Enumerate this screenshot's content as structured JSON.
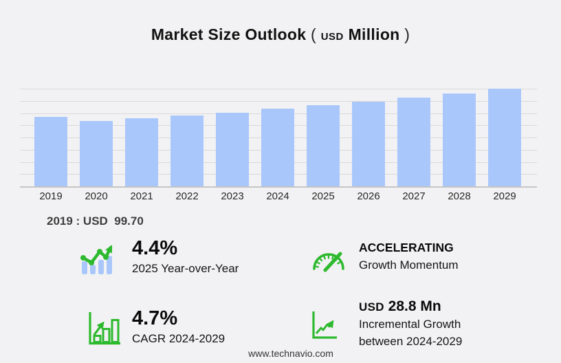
{
  "title": {
    "main": "Market Size Outlook",
    "paren_open": "(",
    "currency": "USD",
    "unit": "Million",
    "paren_close": ")"
  },
  "chart_data": {
    "type": "bar",
    "title": "Market Size Outlook (USD Million)",
    "categories": [
      "2019",
      "2020",
      "2021",
      "2022",
      "2023",
      "2024",
      "2025",
      "2026",
      "2027",
      "2028",
      "2029"
    ],
    "values": [
      99.7,
      93.8,
      98.3,
      102.0,
      106.2,
      111.5,
      116.4,
      121.6,
      127.3,
      133.5,
      140.3
    ],
    "xlabel": "",
    "ylabel": "",
    "ylim": [
      0,
      140.3
    ],
    "gridline_count": 8,
    "grid": true,
    "legend": false,
    "bar_color": "#a9c7fb",
    "annotation": "2019 : USD  99.70"
  },
  "stats": [
    {
      "icon": "bar-chart-trend-up-icon",
      "value": "4.4%",
      "label": "2025 Year-over-Year"
    },
    {
      "icon": "speedometer-icon",
      "value": "ACCELERATING",
      "label": "Growth Momentum"
    },
    {
      "icon": "framed-growth-chart-icon",
      "value": "4.7%",
      "label": "CAGR 2024-2029"
    },
    {
      "icon": "line-graph-arrow-icon",
      "value_prefix": "USD",
      "value": "28.8 Mn",
      "label": "Incremental Growth",
      "label2": "between 2024-2029"
    }
  ],
  "footer": {
    "website": "www.technavio.com"
  },
  "colors": {
    "background": "#f2f2f4",
    "bar": "#a9c7fb",
    "gridline": "#d9d9d9",
    "axis_line": "#c6c6c6",
    "accent_green": "#2db92d",
    "text_dark": "#111111"
  }
}
